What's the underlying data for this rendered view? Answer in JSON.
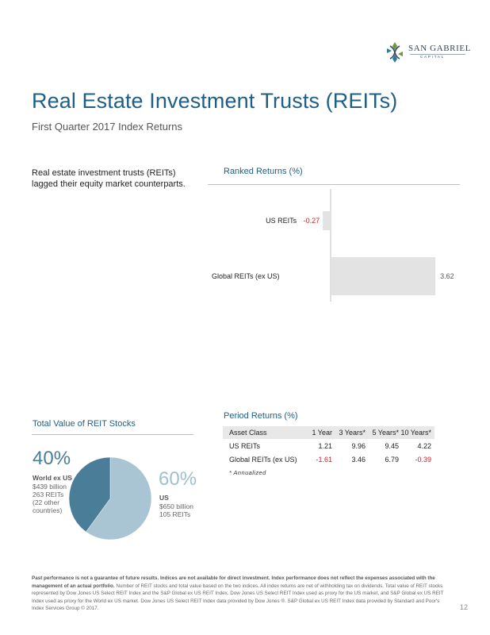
{
  "logo": {
    "name": "SAN GABRIEL",
    "sub": "CAPITAL"
  },
  "title": "Real Estate Investment Trusts (REITs)",
  "subtitle": "First Quarter 2017 Index Returns",
  "intro": "Real estate investment trusts (REITs) lagged their equity market counterparts.",
  "ranked": {
    "heading": "Ranked Returns (%)",
    "chart_data": {
      "type": "bar",
      "orientation": "horizontal",
      "categories": [
        "US REITs",
        "Global REITs (ex US)"
      ],
      "values": [
        -0.27,
        3.62
      ],
      "value_labels": [
        "-0.27",
        "3.62"
      ],
      "colors": {
        "bar": "#e3e3e3",
        "negative_label": "#c0262d",
        "positive_label": "#555555"
      }
    }
  },
  "period": {
    "heading": "Period Returns (%)",
    "columns": [
      "Asset Class",
      "1 Year",
      "3 Years*",
      "5 Years*",
      "10 Years*"
    ],
    "rows": [
      {
        "name": "US REITs",
        "values": [
          "1.21",
          "9.96",
          "9.45",
          "4.22"
        ]
      },
      {
        "name": "Global REITs (ex US)",
        "values": [
          "-1.61",
          "3.46",
          "6.79",
          "-0.39"
        ]
      }
    ],
    "note": "* Annualized"
  },
  "total_value": {
    "heading": "Total Value of REIT Stocks",
    "chart_data": {
      "type": "pie",
      "slices": [
        {
          "label": "World ex US",
          "value": 40,
          "color": "#4a7d97"
        },
        {
          "label": "US",
          "value": 60,
          "color": "#a9c4d2"
        }
      ]
    },
    "world": {
      "pct": "40%",
      "name": "World ex US",
      "lines": [
        "$439 billion",
        "263 REITs",
        "(22 other",
        "countries)"
      ]
    },
    "us": {
      "pct": "60%",
      "name": "US",
      "lines": [
        "$650 billion",
        "105 REITs"
      ]
    }
  },
  "disclaimer": {
    "bold": "Past performance is not a guarantee of future results. Indices are not available for direct investment. Index performance does not reflect the expenses associated with the management of an actual portfolio.",
    "text": "Number of REIT stocks and total value based on the two indices. All index returns are net of withholding tax on dividends. Total value of REIT stocks represented by Dow Jones US Select REIT Index and the S&P Global ex US REIT Index. Dow Jones US Select REIT Index used as proxy for the US market, and S&P Global ex US REIT Index used as proxy for the World ex US market. Dow Jones US Select REIT Index data provided by Dow Jones ®. S&P Global ex US REIT Index data provided by Standard and Poor's Index Services Group © 2017."
  },
  "page_number": "12"
}
